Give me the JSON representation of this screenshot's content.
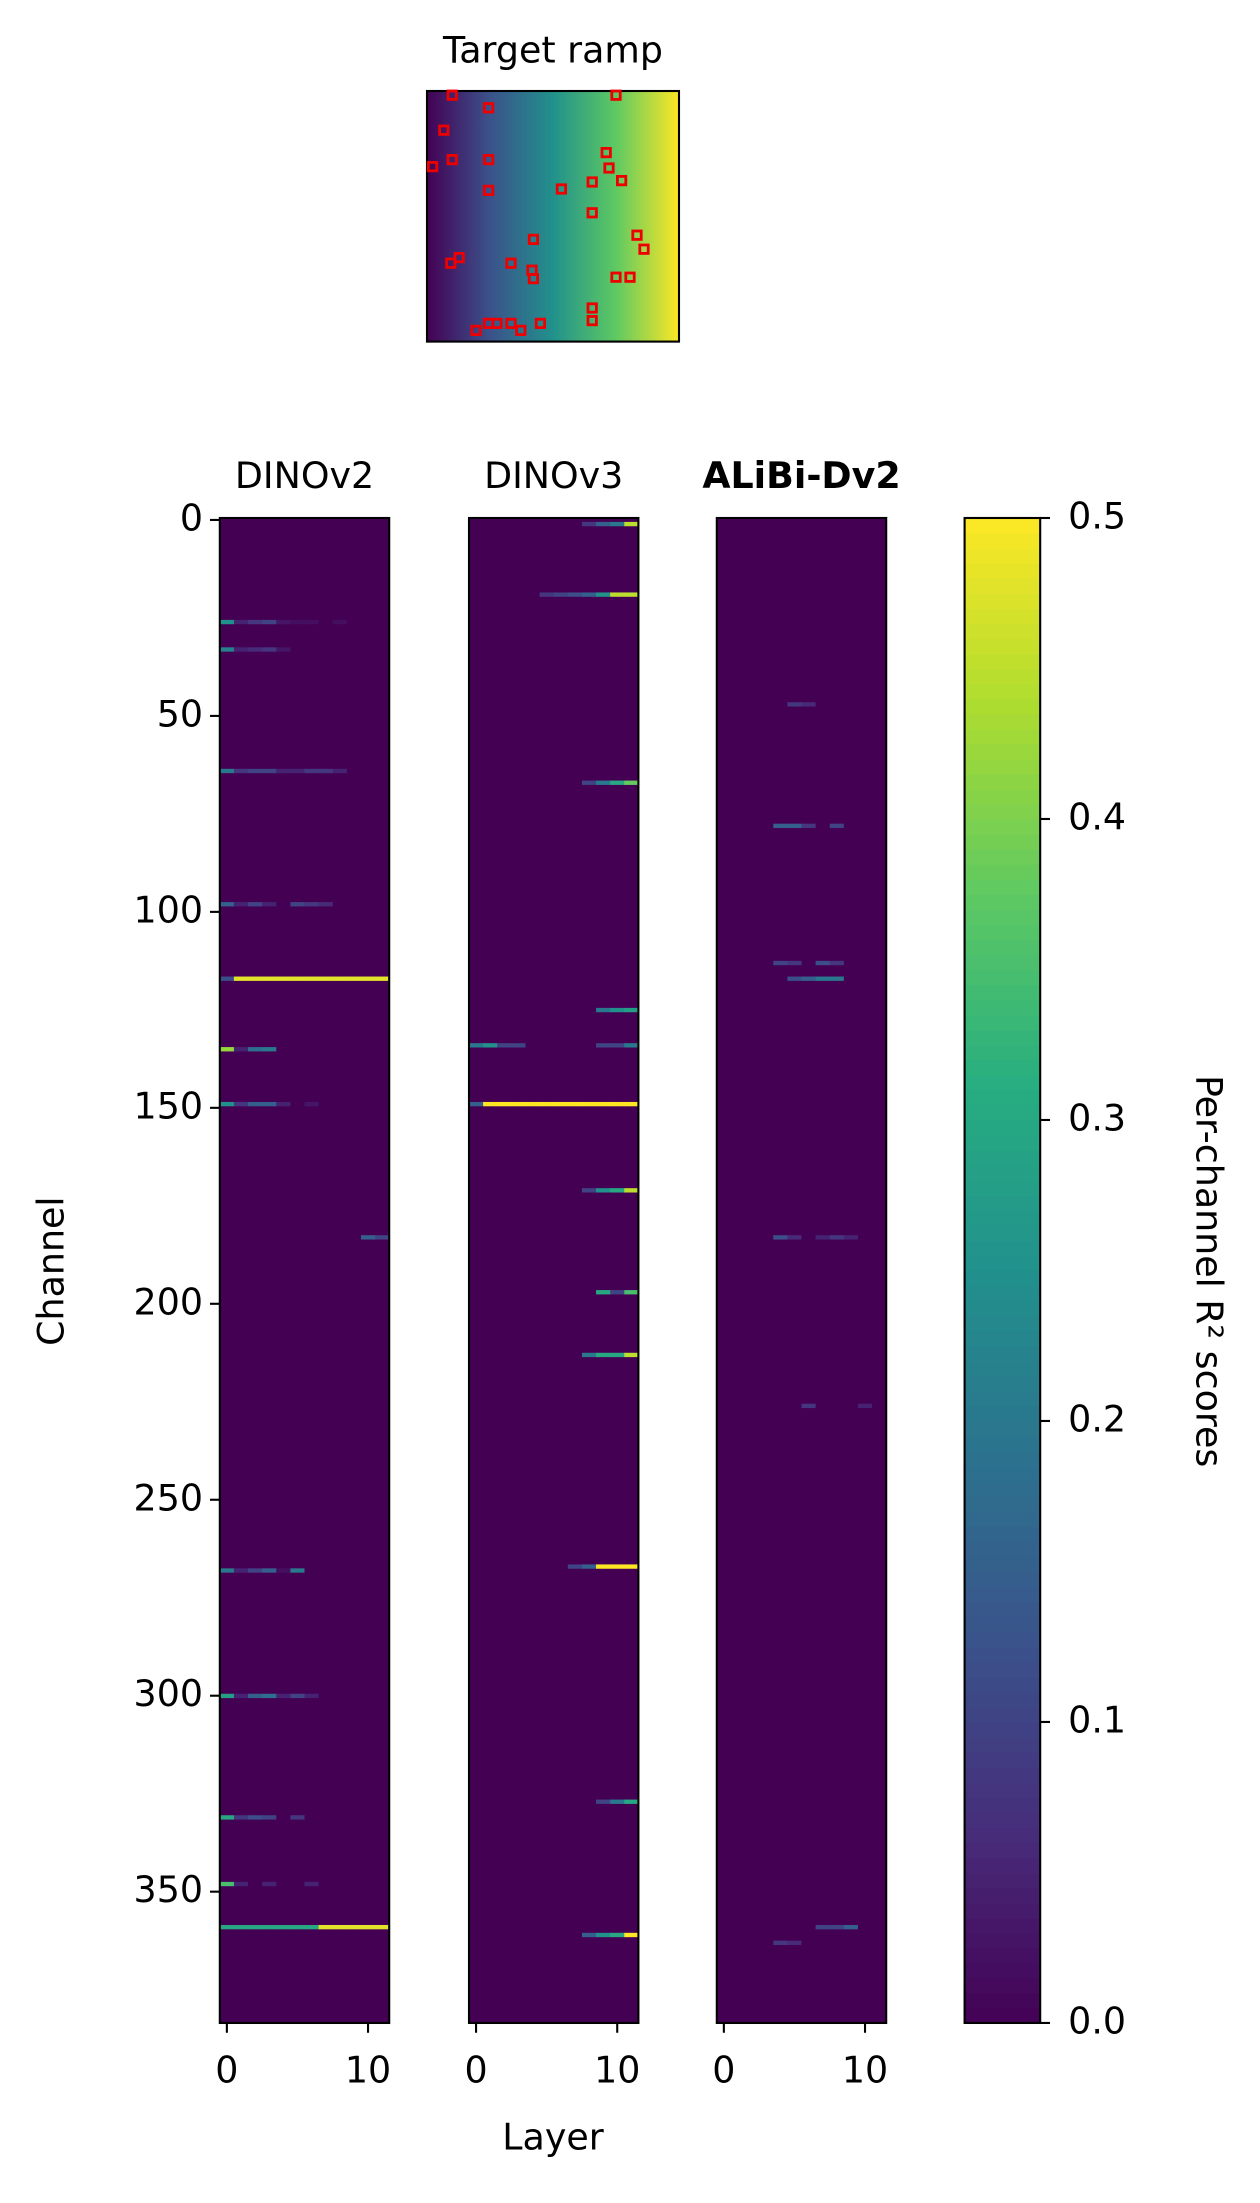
{
  "chart_data": {
    "type": "heatmap",
    "inset_title": "Target ramp",
    "colormap": "viridis",
    "xlabel": "Layer",
    "ylabel": "Channel",
    "xlim": [
      -0.5,
      11.5
    ],
    "xticks": [
      0,
      10
    ],
    "ylim": [
      -0.5,
      383.5
    ],
    "yticks": [
      0,
      50,
      100,
      150,
      200,
      250,
      300,
      350
    ],
    "colorbar": {
      "label": "Per-channel R² scores",
      "lim": [
        0,
        0.5
      ],
      "ticks": [
        0.0,
        0.1,
        0.2,
        0.3,
        0.4,
        0.5
      ]
    },
    "panels": [
      {
        "title": "DINOv2",
        "bold": false,
        "rows": [
          {
            "channel": 26,
            "values": [
              0.25,
              0.05,
              0.08,
              0.1,
              0.03,
              0.02,
              0.02,
              0.0,
              0.02,
              0.0,
              0.0,
              0.0
            ]
          },
          {
            "channel": 33,
            "values": [
              0.22,
              0.05,
              0.06,
              0.08,
              0.03,
              0.0,
              0.0,
              0.0,
              0.0,
              0.0,
              0.0,
              0.0
            ]
          },
          {
            "channel": 64,
            "values": [
              0.2,
              0.08,
              0.1,
              0.1,
              0.05,
              0.05,
              0.08,
              0.08,
              0.05,
              0.0,
              0.0,
              0.0
            ]
          },
          {
            "channel": 98,
            "values": [
              0.15,
              0.05,
              0.1,
              0.05,
              0.0,
              0.1,
              0.08,
              0.06,
              0.0,
              0.0,
              0.0,
              0.0
            ]
          },
          {
            "channel": 117,
            "values": [
              0.12,
              0.48,
              0.48,
              0.48,
              0.48,
              0.48,
              0.48,
              0.48,
              0.48,
              0.48,
              0.48,
              0.48
            ]
          },
          {
            "channel": 135,
            "values": [
              0.42,
              0.05,
              0.18,
              0.2,
              0.0,
              0.0,
              0.0,
              0.0,
              0.0,
              0.0,
              0.0,
              0.0
            ]
          },
          {
            "channel": 149,
            "values": [
              0.25,
              0.08,
              0.15,
              0.15,
              0.05,
              0.0,
              0.03,
              0.0,
              0.0,
              0.0,
              0.0,
              0.0
            ]
          },
          {
            "channel": 183,
            "values": [
              0.0,
              0.0,
              0.0,
              0.0,
              0.0,
              0.0,
              0.0,
              0.0,
              0.0,
              0.0,
              0.15,
              0.1
            ]
          },
          {
            "channel": 268,
            "values": [
              0.2,
              0.05,
              0.1,
              0.15,
              0.02,
              0.2,
              0.0,
              0.0,
              0.0,
              0.0,
              0.0,
              0.0
            ]
          },
          {
            "channel": 300,
            "values": [
              0.28,
              0.05,
              0.15,
              0.18,
              0.05,
              0.1,
              0.05,
              0.0,
              0.0,
              0.0,
              0.0,
              0.0
            ]
          },
          {
            "channel": 331,
            "values": [
              0.3,
              0.08,
              0.12,
              0.1,
              0.0,
              0.08,
              0.0,
              0.0,
              0.0,
              0.0,
              0.0,
              0.0
            ]
          },
          {
            "channel": 348,
            "values": [
              0.35,
              0.05,
              0.0,
              0.05,
              0.0,
              0.0,
              0.05,
              0.0,
              0.0,
              0.0,
              0.0,
              0.0
            ]
          },
          {
            "channel": 359,
            "values": [
              0.3,
              0.3,
              0.3,
              0.3,
              0.3,
              0.3,
              0.3,
              0.48,
              0.48,
              0.48,
              0.48,
              0.48
            ]
          }
        ]
      },
      {
        "title": "DINOv3",
        "bold": false,
        "rows": [
          {
            "channel": 1,
            "values": [
              0.0,
              0.0,
              0.0,
              0.0,
              0.0,
              0.0,
              0.0,
              0.0,
              0.08,
              0.15,
              0.2,
              0.45
            ]
          },
          {
            "channel": 19,
            "values": [
              0.0,
              0.0,
              0.0,
              0.0,
              0.0,
              0.08,
              0.1,
              0.12,
              0.15,
              0.25,
              0.45,
              0.45
            ]
          },
          {
            "channel": 67,
            "values": [
              0.0,
              0.0,
              0.0,
              0.0,
              0.0,
              0.0,
              0.0,
              0.0,
              0.1,
              0.2,
              0.3,
              0.38
            ]
          },
          {
            "channel": 125,
            "values": [
              0.0,
              0.0,
              0.0,
              0.0,
              0.0,
              0.0,
              0.0,
              0.0,
              0.0,
              0.2,
              0.25,
              0.28
            ]
          },
          {
            "channel": 134,
            "values": [
              0.2,
              0.25,
              0.1,
              0.1,
              0.0,
              0.0,
              0.0,
              0.0,
              0.0,
              0.1,
              0.1,
              0.2
            ]
          },
          {
            "channel": 149,
            "values": [
              0.15,
              0.5,
              0.5,
              0.5,
              0.5,
              0.5,
              0.5,
              0.5,
              0.5,
              0.5,
              0.5,
              0.5
            ]
          },
          {
            "channel": 171,
            "values": [
              0.0,
              0.0,
              0.0,
              0.0,
              0.0,
              0.0,
              0.0,
              0.0,
              0.1,
              0.25,
              0.3,
              0.45
            ]
          },
          {
            "channel": 197,
            "values": [
              0.0,
              0.0,
              0.0,
              0.0,
              0.0,
              0.0,
              0.0,
              0.0,
              0.0,
              0.3,
              0.1,
              0.35
            ]
          },
          {
            "channel": 213,
            "values": [
              0.0,
              0.0,
              0.0,
              0.0,
              0.0,
              0.0,
              0.0,
              0.0,
              0.2,
              0.3,
              0.3,
              0.45
            ]
          },
          {
            "channel": 267,
            "values": [
              0.0,
              0.0,
              0.0,
              0.0,
              0.0,
              0.0,
              0.0,
              0.1,
              0.15,
              0.5,
              0.5,
              0.5
            ]
          },
          {
            "channel": 327,
            "values": [
              0.0,
              0.0,
              0.0,
              0.0,
              0.0,
              0.0,
              0.0,
              0.0,
              0.0,
              0.1,
              0.2,
              0.3
            ]
          },
          {
            "channel": 361,
            "values": [
              0.0,
              0.0,
              0.0,
              0.0,
              0.0,
              0.0,
              0.0,
              0.0,
              0.15,
              0.25,
              0.3,
              0.5
            ]
          }
        ]
      },
      {
        "title": "ALiBi-Dv2",
        "bold": true,
        "rows": [
          {
            "channel": 47,
            "values": [
              0.0,
              0.0,
              0.0,
              0.0,
              0.0,
              0.08,
              0.06,
              0.0,
              0.0,
              0.0,
              0.0,
              0.0
            ]
          },
          {
            "channel": 78,
            "values": [
              0.0,
              0.0,
              0.0,
              0.0,
              0.15,
              0.15,
              0.08,
              0.0,
              0.1,
              0.0,
              0.0,
              0.0
            ]
          },
          {
            "channel": 113,
            "values": [
              0.0,
              0.0,
              0.0,
              0.0,
              0.1,
              0.08,
              0.0,
              0.12,
              0.08,
              0.0,
              0.0,
              0.0
            ]
          },
          {
            "channel": 117,
            "values": [
              0.0,
              0.0,
              0.0,
              0.0,
              0.0,
              0.12,
              0.15,
              0.2,
              0.2,
              0.0,
              0.0,
              0.0
            ]
          },
          {
            "channel": 183,
            "values": [
              0.0,
              0.0,
              0.0,
              0.0,
              0.12,
              0.06,
              0.0,
              0.05,
              0.08,
              0.05,
              0.0,
              0.0
            ]
          },
          {
            "channel": 226,
            "values": [
              0.0,
              0.0,
              0.0,
              0.0,
              0.0,
              0.0,
              0.08,
              0.0,
              0.0,
              0.0,
              0.05,
              0.0
            ]
          },
          {
            "channel": 359,
            "values": [
              0.0,
              0.0,
              0.0,
              0.0,
              0.0,
              0.0,
              0.0,
              0.1,
              0.1,
              0.15,
              0.0,
              0.0
            ]
          },
          {
            "channel": 363,
            "values": [
              0.0,
              0.0,
              0.0,
              0.0,
              0.08,
              0.06,
              0.0,
              0.0,
              0.0,
              0.0,
              0.0,
              0.0
            ]
          }
        ]
      }
    ]
  }
}
